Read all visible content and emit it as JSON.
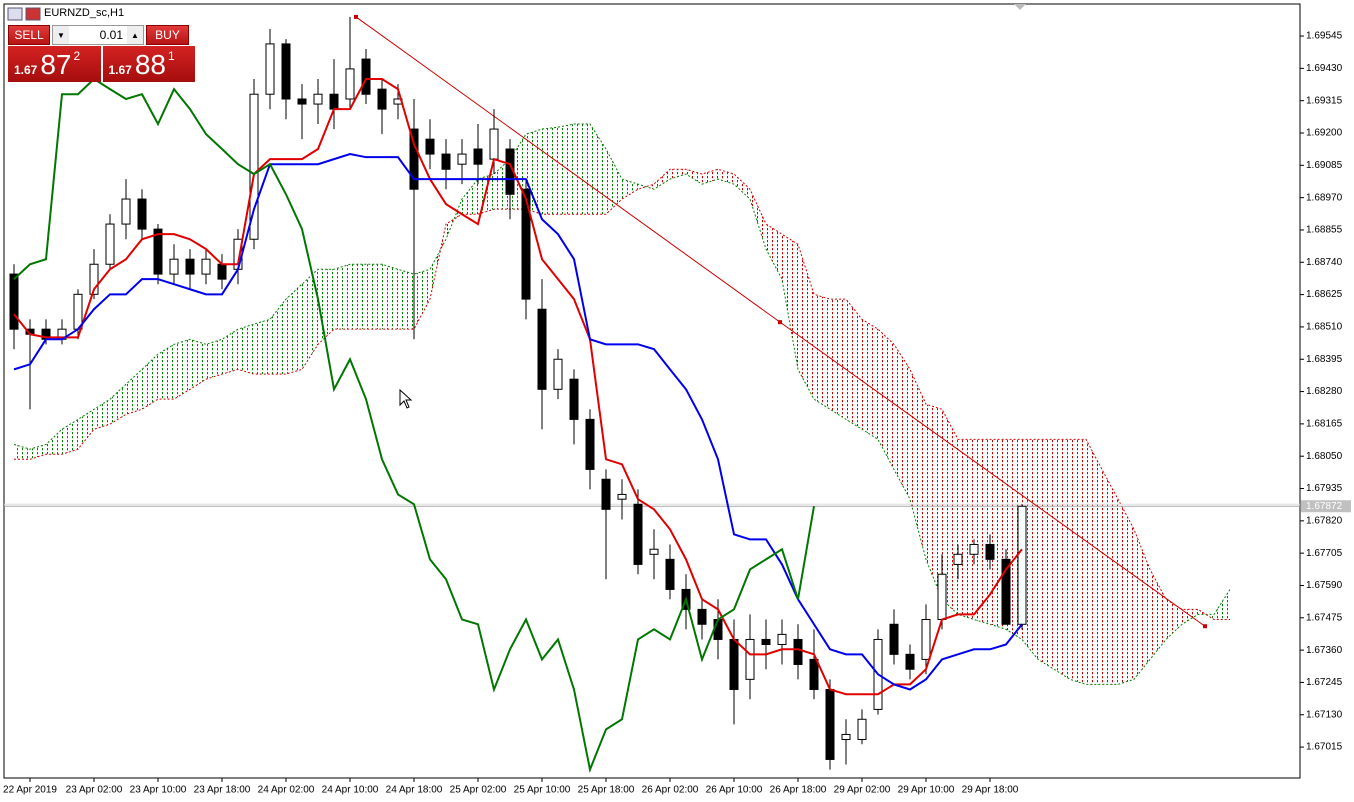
{
  "window_title": "EURNZD_sc,H1",
  "trade_panel": {
    "sell_label": "SELL",
    "buy_label": "BUY",
    "lot": "0.01",
    "sell_price": {
      "big_figure": "1.67",
      "pips": "87",
      "point": "2"
    },
    "buy_price": {
      "big_figure": "1.67",
      "pips": "88",
      "point": "1"
    }
  },
  "chart_data": {
    "type": "candlestick",
    "categories": [
      null,
      "22 Apr 2019",
      null,
      null,
      null,
      "23 Apr 02:00",
      null,
      null,
      null,
      "23 Apr 10:00",
      null,
      null,
      null,
      "23 Apr 18:00",
      null,
      null,
      null,
      "24 Apr 02:00",
      null,
      null,
      null,
      "24 Apr 10:00",
      null,
      null,
      null,
      "24 Apr 18:00",
      null,
      null,
      null,
      "25 Apr 02:00",
      null,
      null,
      null,
      "25 Apr 10:00",
      null,
      null,
      null,
      "25 Apr 18:00",
      null,
      null,
      null,
      "26 Apr 02:00",
      null,
      null,
      null,
      "26 Apr 10:00",
      null,
      null,
      null,
      "26 Apr 18:00",
      null,
      null,
      null,
      "29 Apr 02:00",
      null,
      null,
      null,
      "29 Apr 10:00",
      null,
      null,
      null,
      "29 Apr 18:00",
      null,
      null,
      null,
      null,
      null,
      null,
      null,
      null,
      null,
      null,
      null,
      null,
      null,
      null,
      null
    ],
    "open": [
      1.68698,
      1.68502,
      1.68502,
      1.68466,
      1.68502,
      1.68626,
      1.68733,
      1.68876,
      1.68965,
      1.68858,
      1.68698,
      1.68751,
      1.68698,
      1.68733,
      1.68715,
      1.68822,
      1.69338,
      1.69517,
      1.69321,
      1.69303,
      1.69338,
      1.69321,
      1.69463,
      1.69356,
      1.69303,
      1.69214,
      1.69178,
      1.69125,
      1.69089,
      1.69143,
      1.69107,
      1.69143,
      1.69,
      1.68573,
      1.68288,
      1.68324,
      1.68181,
      1.67968,
      1.67897,
      1.67879,
      1.67701,
      1.67683,
      1.67576,
      1.67505,
      1.67469,
      1.67398,
      1.67256,
      1.67398,
      1.6738,
      1.67398,
      1.67327,
      1.6722,
      1.67042,
      1.67042,
      1.67149,
      1.67452,
      1.67345,
      1.67327,
      1.67469,
      1.67665,
      1.67701,
      1.67736,
      1.67683,
      1.67452,
      null,
      null,
      null,
      null,
      null,
      null,
      null,
      null,
      null,
      null,
      null,
      null,
      null
    ],
    "high": [
      1.68733,
      1.68537,
      1.68537,
      1.68537,
      1.68644,
      1.68787,
      1.68911,
      1.69036,
      1.69,
      1.68876,
      1.68804,
      1.68787,
      1.68787,
      1.68769,
      1.68858,
      1.69392,
      1.6957,
      1.69534,
      1.69374,
      1.69392,
      1.69463,
      1.69613,
      1.69499,
      1.69392,
      1.69374,
      1.69321,
      1.69249,
      1.69178,
      1.69178,
      1.69232,
      1.69285,
      1.69178,
      1.69036,
      1.6868,
      1.68431,
      1.68359,
      1.68217,
      1.68003,
      1.67968,
      1.67932,
      1.6779,
      1.67736,
      1.6763,
      1.67541,
      1.67541,
      1.67469,
      1.67487,
      1.67469,
      1.67469,
      1.67452,
      1.67434,
      1.67256,
      1.67114,
      1.67149,
      1.67434,
      1.67505,
      1.6738,
      1.67523,
      1.67701,
      1.67736,
      1.67754,
      1.67772,
      1.67719,
      1.67879,
      null,
      null,
      null,
      null,
      null,
      null,
      null,
      null,
      null,
      null,
      null,
      null,
      null
    ],
    "low": [
      1.68431,
      1.68217,
      1.68448,
      1.68448,
      1.68466,
      1.68609,
      1.68715,
      1.68822,
      1.68822,
      1.68662,
      1.68662,
      1.68644,
      1.68662,
      1.68644,
      1.68662,
      1.68787,
      1.69285,
      1.69249,
      1.69178,
      1.69232,
      1.69214,
      1.69285,
      1.69303,
      1.69196,
      1.69249,
      1.68466,
      1.69071,
      1.69,
      1.69018,
      1.69018,
      1.69054,
      1.68893,
      1.68537,
      1.68146,
      1.68253,
      1.68092,
      1.67932,
      1.67612,
      1.67825,
      1.6763,
      1.67612,
      1.67541,
      1.67434,
      1.67398,
      1.67327,
      1.67096,
      1.67185,
      1.67292,
      1.67309,
      1.67256,
      1.67185,
      1.66935,
      1.66953,
      1.67025,
      1.67131,
      1.67309,
      1.67256,
      1.67274,
      1.67434,
      1.67612,
      1.67665,
      1.67647,
      1.67452,
      1.67434,
      null,
      null,
      null,
      null,
      null,
      null,
      null,
      null,
      null,
      null,
      null,
      null,
      null
    ],
    "close": [
      1.68502,
      1.68484,
      1.68466,
      1.68502,
      1.68626,
      1.68733,
      1.68876,
      1.68965,
      1.68858,
      1.68698,
      1.68751,
      1.68698,
      1.68751,
      1.6868,
      1.68822,
      1.69338,
      1.69517,
      1.69321,
      1.69303,
      1.69338,
      1.69285,
      1.69428,
      1.69338,
      1.69285,
      1.69321,
      1.69,
      1.69125,
      1.69071,
      1.69125,
      1.69089,
      1.69214,
      1.68982,
      1.68609,
      1.68288,
      1.68395,
      1.68181,
      1.68003,
      1.67861,
      1.67914,
      1.67665,
      1.67719,
      1.67576,
      1.67505,
      1.67452,
      1.67398,
      1.6722,
      1.67398,
      1.6738,
      1.67416,
      1.67309,
      1.6722,
      1.66971,
      1.6706,
      1.67114,
      1.67398,
      1.67345,
      1.67292,
      1.67469,
      1.6763,
      1.67701,
      1.67736,
      1.67683,
      1.67452,
      1.67872,
      null,
      null,
      null,
      null,
      null,
      null,
      null,
      null,
      null,
      null,
      null,
      null,
      null
    ],
    "bull_color": "#ffffff",
    "bear_color": "#000000",
    "wick_color": "#000000",
    "lines": [
      {
        "color": "#e00000",
        "values": [
          1.68555,
          1.68484,
          1.68473,
          1.68473,
          1.68473,
          1.68644,
          1.68715,
          1.68751,
          1.68822,
          1.6884,
          1.6884,
          1.68822,
          1.68787,
          1.68733,
          1.68733,
          1.69054,
          1.69107,
          1.69107,
          1.69107,
          1.69143,
          1.69285,
          1.69285,
          1.69392,
          1.69392,
          1.69356,
          1.6916,
          1.69036,
          1.68947,
          1.68911,
          1.68876,
          1.69107,
          1.69089,
          1.68965,
          1.68751,
          1.6868,
          1.68609,
          1.68466,
          1.68039,
          1.68021,
          1.67897,
          1.67861,
          1.6779,
          1.67683,
          1.67541,
          1.67505,
          1.67398,
          1.67345,
          1.67345,
          1.67363,
          1.67363,
          1.67345,
          1.6722,
          1.67203,
          1.67203,
          1.67203,
          1.67238,
          1.67238,
          1.67292,
          1.67469,
          1.67487,
          1.67487,
          1.67558,
          1.67647,
          1.67719,
          null,
          null,
          null,
          null,
          null,
          null,
          null,
          null,
          null,
          null,
          null,
          null,
          null
        ]
      },
      {
        "color": "#0000ee",
        "values": [
          1.68359,
          1.68377,
          1.68466,
          1.68466,
          1.68502,
          1.68573,
          1.68626,
          1.68626,
          1.6868,
          1.6868,
          1.68662,
          1.68644,
          1.68626,
          1.68626,
          1.68715,
          1.68929,
          1.69089,
          1.69089,
          1.69089,
          1.69089,
          1.69107,
          1.69125,
          1.69114,
          1.69114,
          1.69114,
          1.69036,
          1.69036,
          1.69036,
          1.69036,
          1.69036,
          1.69036,
          1.69036,
          1.69036,
          1.68893,
          1.6884,
          1.68751,
          1.68466,
          1.68448,
          1.68448,
          1.68448,
          1.68431,
          1.68359,
          1.68288,
          1.68181,
          1.68039,
          1.67772,
          1.67754,
          1.67754,
          1.67665,
          1.67541,
          1.67452,
          1.67363,
          1.67345,
          1.67345,
          1.67274,
          1.67238,
          1.6722,
          1.67256,
          1.67327,
          1.67345,
          1.67363,
          1.67363,
          1.6738,
          1.67452,
          null,
          null,
          null,
          null,
          null,
          null,
          null,
          null,
          null,
          null,
          null,
          null,
          null
        ]
      },
      {
        "color": "#007700",
        "values": [
          1.6868,
          1.68733,
          1.68751,
          1.69338,
          1.69338,
          1.69392,
          1.69356,
          1.69321,
          1.69338,
          1.69232,
          1.69356,
          1.69285,
          1.69196,
          1.69143,
          1.69089,
          1.69054,
          1.69089,
          1.68982,
          1.68858,
          1.68609,
          1.68288,
          1.68395,
          1.68253,
          1.68039,
          1.67914,
          1.67879,
          1.67683,
          1.67612,
          1.67469,
          1.67452,
          1.6722,
          1.67363,
          1.67469,
          1.67327,
          1.67398,
          1.6722,
          1.66935,
          1.67078,
          1.67114,
          1.67398,
          1.67434,
          1.67398,
          1.67541,
          1.67327,
          1.67469,
          1.67505,
          1.67647,
          1.67683,
          1.67719,
          1.67541,
          1.67872,
          null,
          null,
          null,
          null,
          null,
          null,
          null,
          null,
          null,
          null,
          null,
          null,
          null,
          null,
          null,
          null,
          null,
          null,
          null,
          null,
          null,
          null,
          null,
          null,
          null
        ]
      }
    ],
    "cloud": {
      "span_a": {
        "color": "#008000",
        "values": [
          1.68092,
          1.68075,
          1.68092,
          1.68146,
          1.68181,
          1.68217,
          1.68253,
          1.68306,
          1.68359,
          1.68413,
          1.68448,
          1.68466,
          1.68448,
          1.68466,
          1.68502,
          1.6852,
          1.68537,
          1.68609,
          1.68662,
          1.68715,
          1.68715,
          1.68733,
          1.68733,
          1.68733,
          1.68715,
          1.68698,
          1.68715,
          1.68822,
          1.68965,
          1.69036,
          1.69054,
          1.69107,
          1.69196,
          1.69214,
          1.69221,
          1.69232,
          1.69232,
          1.69143,
          1.69036,
          1.69018,
          1.69,
          1.69036,
          1.69054,
          1.69018,
          1.69036,
          1.69018,
          1.68965,
          1.68787,
          1.6868,
          1.68359,
          1.68253,
          1.68217,
          1.68181,
          1.68146,
          1.6811,
          1.68003,
          1.67897,
          1.67683,
          1.67541,
          1.67487,
          1.67469,
          1.67452,
          1.67434,
          1.67398,
          1.67327,
          1.67292,
          1.67256,
          1.67238,
          1.67238,
          1.67238,
          1.67256,
          1.67327,
          1.67398,
          1.67452,
          1.67487,
          1.67487,
          1.67576
        ]
      },
      "span_b": {
        "color": "#d00000",
        "values": [
          1.68039,
          1.68039,
          1.68057,
          1.68057,
          1.68075,
          1.68146,
          1.68164,
          1.68199,
          1.68217,
          1.68253,
          1.68253,
          1.68288,
          1.68324,
          1.68342,
          1.68359,
          1.68342,
          1.68342,
          1.68342,
          1.68359,
          1.68448,
          1.68502,
          1.68502,
          1.68502,
          1.68502,
          1.68502,
          1.68502,
          1.68609,
          1.68876,
          1.68911,
          1.68911,
          1.68929,
          1.68929,
          1.68929,
          1.68911,
          1.68911,
          1.68911,
          1.68911,
          1.68911,
          1.68965,
          1.69,
          1.69018,
          1.69071,
          1.69071,
          1.69054,
          1.69071,
          1.69054,
          1.69,
          1.68876,
          1.6884,
          1.68804,
          1.68626,
          1.68609,
          1.68609,
          1.68537,
          1.68502,
          1.68448,
          1.68359,
          1.68235,
          1.68217,
          1.6811,
          1.6811,
          1.6811,
          1.6811,
          1.6811,
          1.6811,
          1.6811,
          1.6811,
          1.6811,
          1.68003,
          1.67897,
          1.6779,
          1.67647,
          1.67541,
          1.67505,
          1.67505,
          1.67469,
          1.67469
        ]
      }
    },
    "trendline": {
      "color": "#cc0000",
      "x": [
        21.375,
        47.875,
        74.4375
      ],
      "y": [
        1.69613,
        1.68527,
        1.67445
      ]
    },
    "current_price": 1.67872,
    "ylim": [
      1.66905,
      1.69659
    ],
    "yticks": [
      1.69545,
      {
        "value": 1.6943,
        "label": "1.69430"
      },
      1.69315,
      {
        "value": 1.692,
        "label": "1.69200"
      },
      1.69085,
      {
        "value": 1.6897,
        "label": "1.68970"
      },
      1.68855,
      {
        "value": 1.6874,
        "label": "1.68740"
      },
      1.68625,
      {
        "value": 1.6851,
        "label": "1.68510"
      },
      1.68395,
      {
        "value": 1.6828,
        "label": "1.68280"
      },
      1.68165,
      {
        "value": 1.6805,
        "label": "1.68050"
      },
      1.67935,
      {
        "value": 1.6782,
        "label": "1.67820"
      },
      1.67705,
      {
        "value": 1.6759,
        "label": "1.67590"
      },
      1.67475,
      {
        "value": 1.6736,
        "label": "1.67360"
      },
      1.67245,
      {
        "value": 1.6713,
        "label": "1.67130"
      },
      1.67015
    ],
    "grid": false
  }
}
